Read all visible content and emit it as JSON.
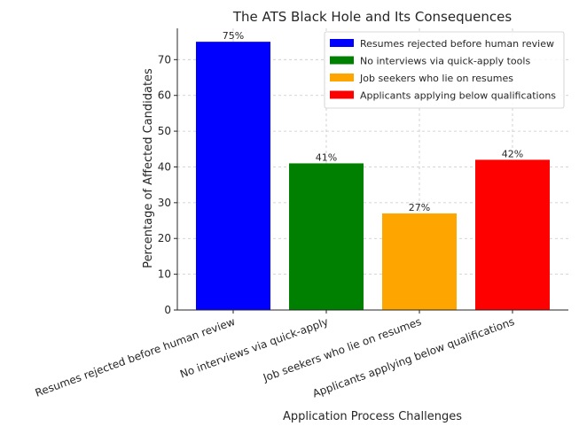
{
  "chart_data": {
    "type": "bar",
    "title": "The ATS Black Hole and Its Consequences",
    "xlabel": "Application Process Challenges",
    "ylabel": "Percentage of Affected Candidates",
    "categories": [
      "Resumes rejected before human review",
      "No interviews via quick-apply",
      "Job seekers who lie on resumes",
      "Applicants applying below qualifications"
    ],
    "values": [
      75,
      41,
      27,
      42
    ],
    "data_labels": [
      "75%",
      "41%",
      "27%",
      "42%"
    ],
    "colors": [
      "#0000ff",
      "#008000",
      "#ffa500",
      "#ff0000"
    ],
    "ylim": [
      0,
      78.75
    ],
    "yticks": [
      0,
      10,
      20,
      30,
      40,
      50,
      60,
      70
    ],
    "grid": true,
    "legend": {
      "placement": "top-right",
      "entries": [
        "Resumes rejected before human review",
        "No interviews via quick-apply tools",
        "Job seekers who lie on resumes",
        "Applicants applying below qualifications"
      ]
    }
  }
}
